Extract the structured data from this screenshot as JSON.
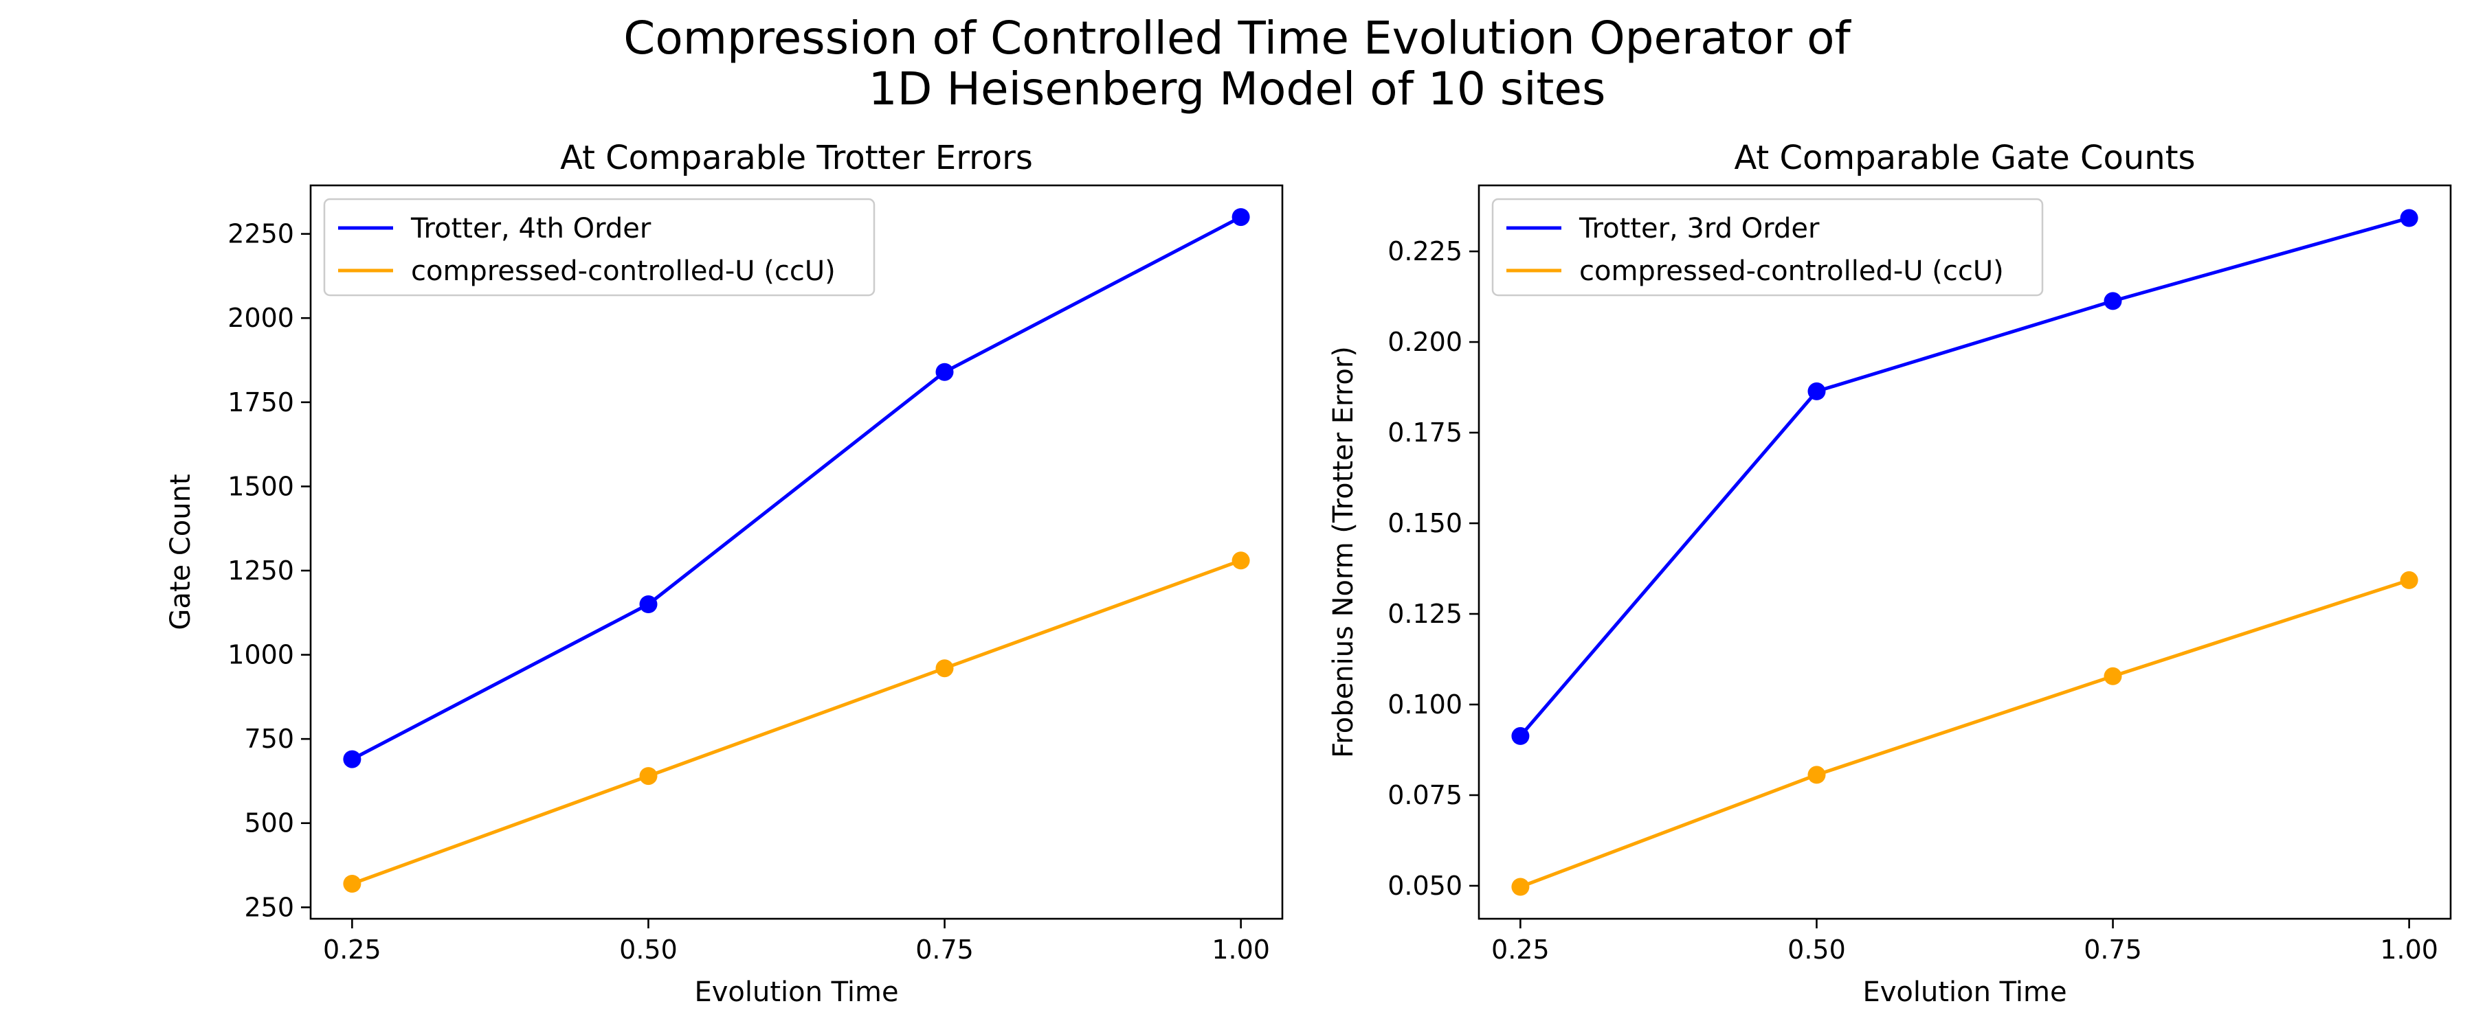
{
  "figure": {
    "title_line1": "Compression of Controlled Time Evolution Operator of",
    "title_line2": "1D Heisenberg Model of 10 sites"
  },
  "chart_data": [
    {
      "type": "line",
      "title": "At Comparable Trotter Errors",
      "xlabel": "Evolution Time",
      "ylabel": "Gate Count",
      "x": [
        0.25,
        0.5,
        0.75,
        1.0
      ],
      "xticks": [
        "0.25",
        "0.50",
        "0.75",
        "1.00"
      ],
      "xtick_values": [
        0.25,
        0.5,
        0.75,
        1.0
      ],
      "yticks": [
        "250",
        "500",
        "750",
        "1000",
        "1250",
        "1500",
        "1750",
        "2000",
        "2250"
      ],
      "ytick_values": [
        250,
        500,
        750,
        1000,
        1250,
        1500,
        1750,
        2000,
        2250
      ],
      "xlim": [
        0.215,
        1.035
      ],
      "ylim": [
        216,
        2394
      ],
      "legend": "top-left",
      "grid": false,
      "series": [
        {
          "name": "Trotter, 4th Order",
          "color": "#0000ff",
          "values": [
            690,
            1150,
            1840,
            2300
          ]
        },
        {
          "name": "compressed-controlled-U (ccU)",
          "color": "#ffa500",
          "values": [
            320,
            640,
            960,
            1280
          ]
        }
      ]
    },
    {
      "type": "line",
      "title": "At Comparable Gate Counts",
      "xlabel": "Evolution Time",
      "ylabel": "Frobenius Norm (Trotter Error)",
      "x": [
        0.25,
        0.5,
        0.75,
        1.0
      ],
      "xticks": [
        "0.25",
        "0.50",
        "0.75",
        "1.00"
      ],
      "xtick_values": [
        0.25,
        0.5,
        0.75,
        1.0
      ],
      "yticks": [
        "0.050",
        "0.075",
        "0.100",
        "0.125",
        "0.150",
        "0.175",
        "0.200",
        "0.225"
      ],
      "ytick_values": [
        0.05,
        0.075,
        0.1,
        0.125,
        0.15,
        0.175,
        0.2,
        0.225
      ],
      "xlim": [
        0.215,
        1.035
      ],
      "ylim": [
        0.0409,
        0.2432
      ],
      "legend": "top-left",
      "grid": false,
      "series": [
        {
          "name": "Trotter, 3rd Order",
          "color": "#0000ff",
          "values": [
            0.0913,
            0.1864,
            0.2113,
            0.2342
          ]
        },
        {
          "name": "compressed-controlled-U (ccU)",
          "color": "#ffa500",
          "values": [
            0.0497,
            0.0806,
            0.1078,
            0.1343
          ]
        }
      ]
    }
  ]
}
